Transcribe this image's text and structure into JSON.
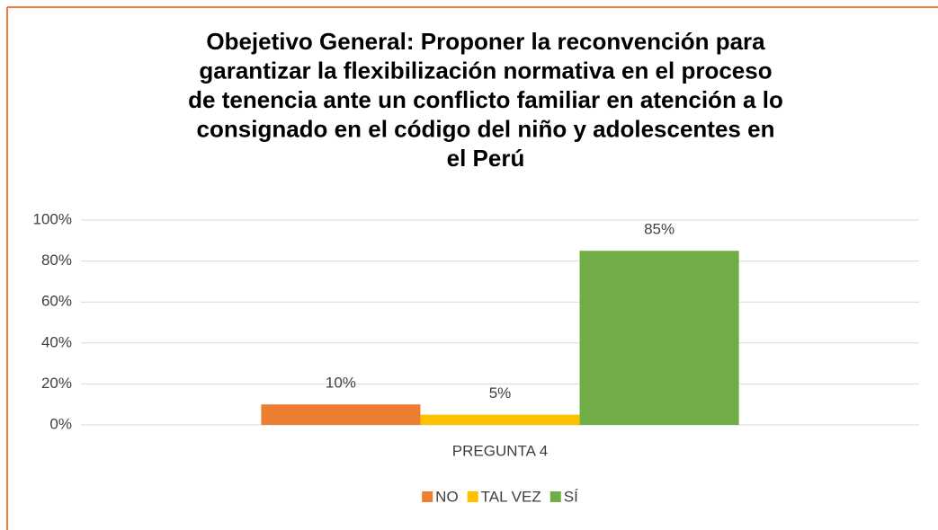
{
  "chart_data": {
    "type": "bar",
    "title": [
      "Obejetivo General: Proponer la reconvención para",
      "garantizar la flexibilización normativa en el proceso",
      "de tenencia ante un conflicto familiar en atención a lo",
      "consignado en el código del niño y adolescentes en",
      "el Perú"
    ],
    "categories": [
      "PREGUNTA 4"
    ],
    "series": [
      {
        "name": "NO",
        "color": "#ed7d31",
        "values": [
          10
        ],
        "value_labels": [
          "10%"
        ]
      },
      {
        "name": "TAL VEZ",
        "color": "#ffc000",
        "values": [
          5
        ],
        "value_labels": [
          "5%"
        ]
      },
      {
        "name": "SÍ",
        "color": "#70ad47",
        "values": [
          85
        ],
        "value_labels": [
          "85%"
        ]
      }
    ],
    "ylim": [
      0,
      100
    ],
    "yticks": [
      {
        "value": 0,
        "label": "0%"
      },
      {
        "value": 20,
        "label": "20%"
      },
      {
        "value": 40,
        "label": "40%"
      },
      {
        "value": 60,
        "label": "60%"
      },
      {
        "value": 80,
        "label": "80%"
      },
      {
        "value": 100,
        "label": "100%"
      }
    ],
    "grid": true,
    "legend": "bottom"
  }
}
